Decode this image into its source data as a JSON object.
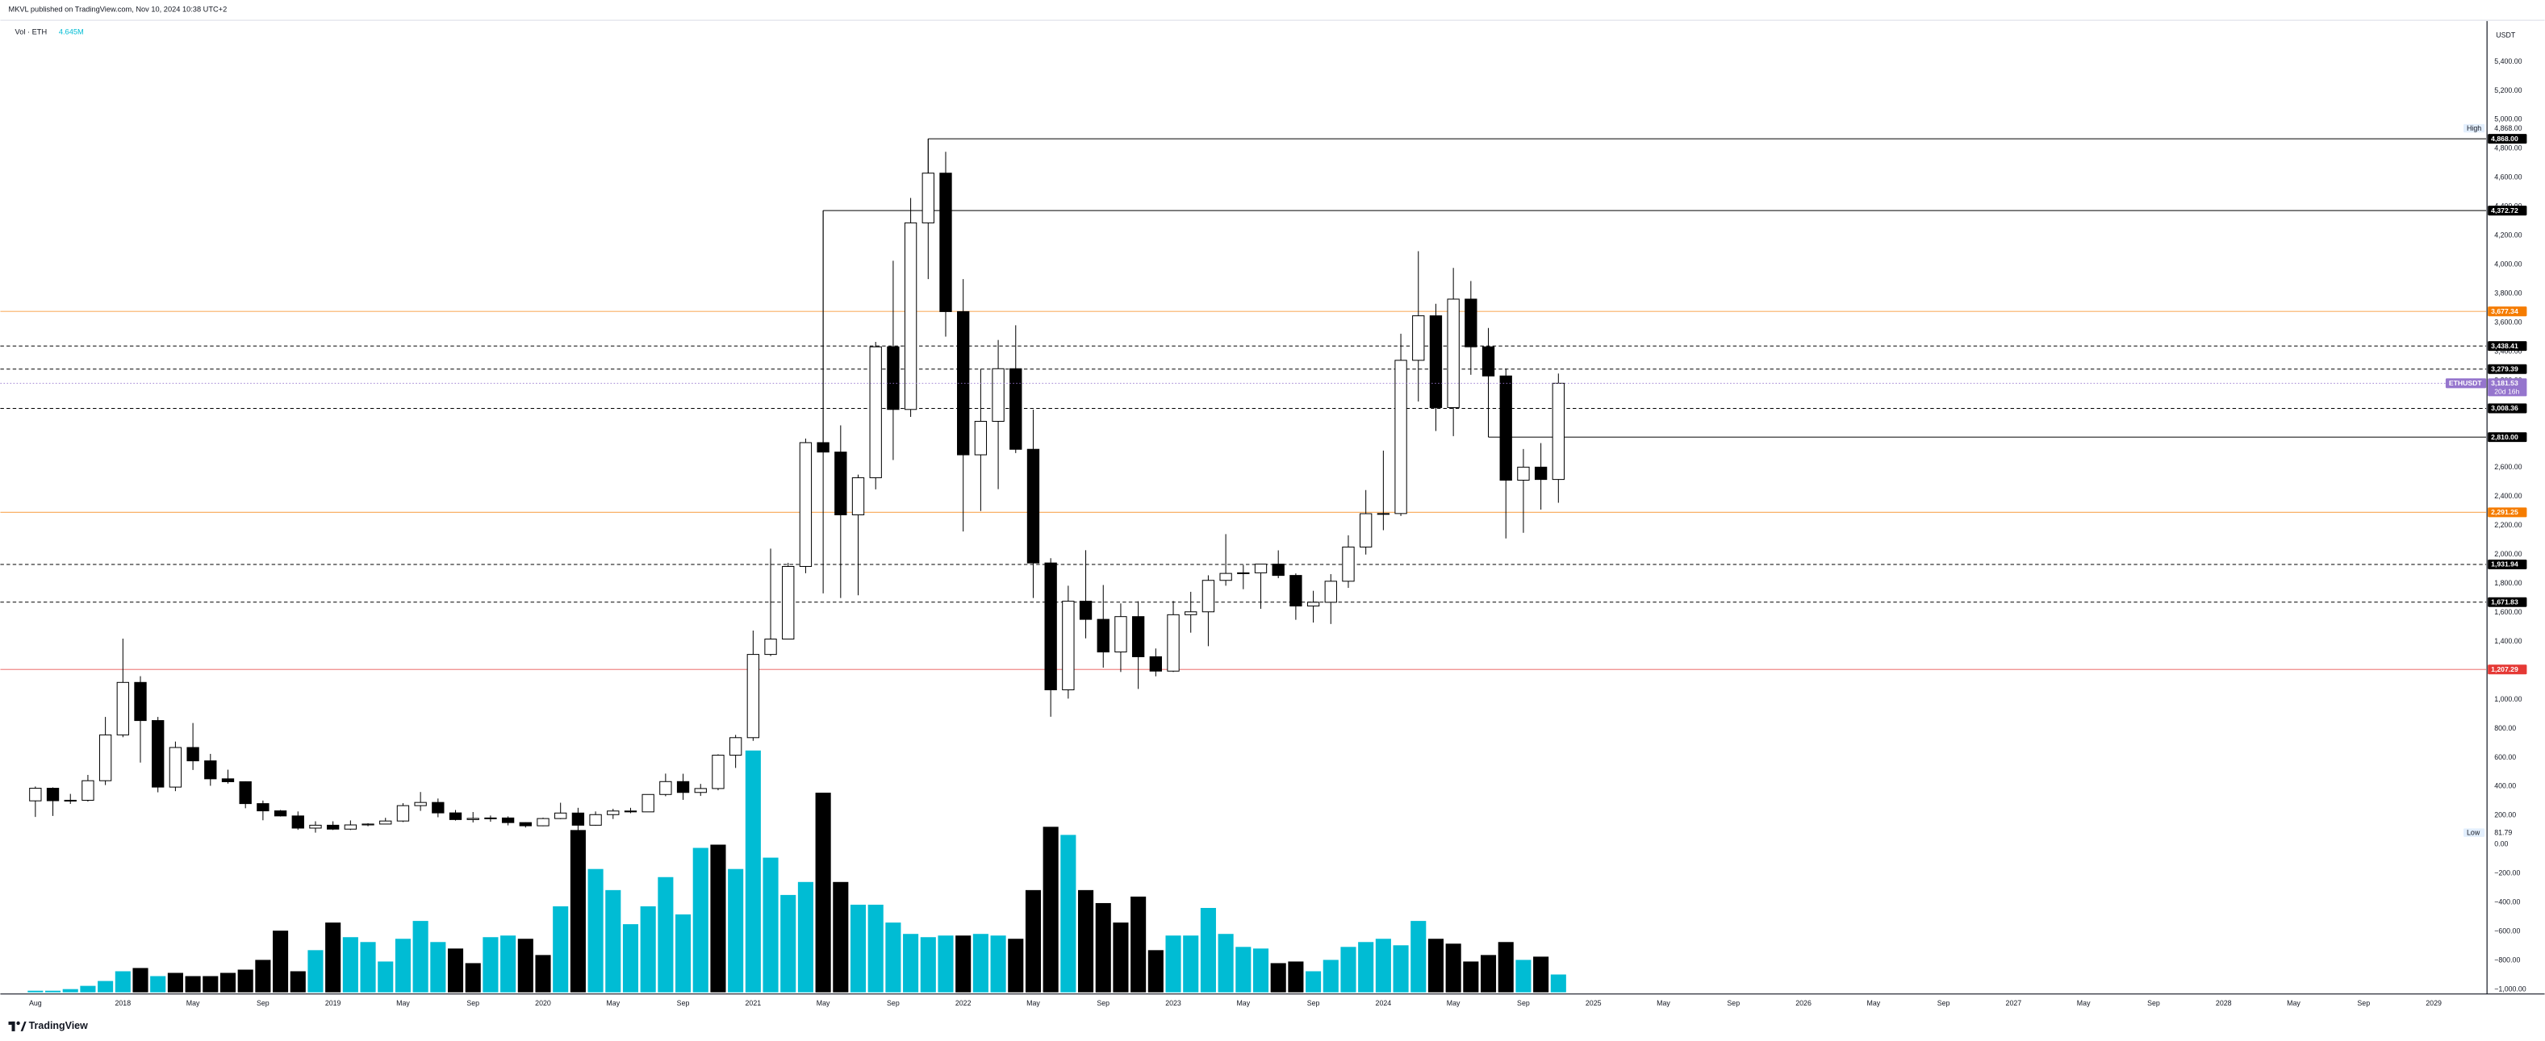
{
  "chart_data": {
    "type": "candlestick",
    "attribution": "MKVL published on TradingView.com, Nov 10, 2024 10:38 UTC+2",
    "footer": "TradingView",
    "y_axis_unit": "USDT",
    "x": [
      "2017-08",
      "2017-09",
      "2017-10",
      "2017-11",
      "2017-12",
      "2018-01",
      "2018-02",
      "2018-03",
      "2018-04",
      "2018-05",
      "2018-06",
      "2018-07",
      "2018-08",
      "2018-09",
      "2018-10",
      "2018-11",
      "2018-12",
      "2019-01",
      "2019-02",
      "2019-03",
      "2019-04",
      "2019-05",
      "2019-06",
      "2019-07",
      "2019-08",
      "2019-09",
      "2019-10",
      "2019-11",
      "2019-12",
      "2020-01",
      "2020-02",
      "2020-03",
      "2020-04",
      "2020-05",
      "2020-06",
      "2020-07",
      "2020-08",
      "2020-09",
      "2020-10",
      "2020-11",
      "2020-12",
      "2021-01",
      "2021-02",
      "2021-03",
      "2021-04",
      "2021-05",
      "2021-06",
      "2021-07",
      "2021-08",
      "2021-09",
      "2021-10",
      "2021-11",
      "2021-12",
      "2022-01",
      "2022-02",
      "2022-03",
      "2022-04",
      "2022-05",
      "2022-06",
      "2022-07",
      "2022-08",
      "2022-09",
      "2022-10",
      "2022-11",
      "2022-12",
      "2023-01",
      "2023-02",
      "2023-03",
      "2023-04",
      "2023-05",
      "2023-06",
      "2023-07",
      "2023-08",
      "2023-09",
      "2023-10",
      "2023-11",
      "2023-12",
      "2024-01",
      "2024-02",
      "2024-03",
      "2024-04",
      "2024-05",
      "2024-06",
      "2024-07",
      "2024-08",
      "2024-09",
      "2024-10",
      "2024-11"
    ],
    "open": [
      301,
      388,
      302,
      305,
      440,
      756,
      1118,
      855,
      396,
      669,
      577,
      453,
      433,
      282,
      232,
      197,
      113,
      133,
      106,
      135,
      141,
      162,
      268,
      290,
      218,
      172,
      180,
      183,
      151,
      129,
      179,
      217,
      133,
      206,
      231,
      225,
      345,
      434,
      359,
      386,
      616,
      737,
      1311,
      1417,
      1918,
      2772,
      2707,
      2274,
      2530,
      3433,
      3001,
      4288,
      4631,
      3676,
      2688,
      2919,
      3282,
      2726,
      1942,
      1067,
      1678,
      1553,
      1328,
      1572,
      1295,
      1196,
      1585,
      1605,
      1822,
      1870,
      1874,
      1934,
      1856,
      1645,
      1671,
      1816,
      2052,
      2282,
      2283,
      3340,
      3647,
      3014,
      3762,
      3433,
      3232,
      2513,
      2603,
      2518
    ],
    "high": [
      400,
      394,
      349,
      480,
      880,
      1420,
      1161,
      880,
      710,
      838,
      625,
      516,
      436,
      303,
      238,
      228,
      160,
      160,
      166,
      147,
      184,
      285,
      362,
      317,
      238,
      224,
      200,
      194,
      153,
      185,
      288,
      253,
      228,
      246,
      253,
      345,
      489,
      488,
      418,
      622,
      756,
      1476,
      2041,
      1943,
      2800,
      4372.72,
      2891,
      2551,
      3467,
      4027,
      4460,
      4868,
      4778,
      3900,
      3280,
      3480,
      3582,
      3000,
      1975,
      1785,
      2030,
      1790,
      1663,
      1678,
      1352,
      1680,
      1743,
      1857,
      2141,
      1928,
      1930,
      2029,
      1870,
      1750,
      1865,
      2133,
      2445,
      2717,
      3523,
      4093,
      3730,
      3977,
      3887,
      3563,
      3283,
      2728,
      2769,
      3249
    ],
    "low": [
      190,
      197,
      280,
      296,
      410,
      740,
      565,
      360,
      368,
      514,
      405,
      420,
      250,
      167,
      193,
      101,
      81.79,
      100,
      100,
      126,
      141,
      155,
      232,
      188,
      165,
      152,
      157,
      132,
      117,
      126,
      175,
      86,
      130,
      176,
      216,
      225,
      333,
      308,
      335,
      374,
      528,
      715,
      1300,
      1416,
      1871,
      1732,
      1700,
      1719,
      2450,
      2652,
      2950,
      3900,
      3503,
      2159,
      2300,
      2451,
      2700,
      1700,
      881,
      1006,
      1422,
      1220,
      1190,
      1073,
      1160,
      1190,
      1461,
      1368,
      1785,
      1761,
      1626,
      1837,
      1550,
      1531,
      1521,
      1770,
      2000,
      2168,
      2266,
      3056,
      2852,
      2817,
      3240,
      2811,
      2111,
      2150,
      2310,
      2357
    ],
    "close": [
      388,
      302,
      305,
      440,
      756,
      1118,
      855,
      396,
      669,
      577,
      453,
      433,
      282,
      232,
      197,
      113,
      133,
      106,
      135,
      141,
      162,
      268,
      290,
      218,
      172,
      180,
      183,
      151,
      129,
      179,
      217,
      133,
      206,
      231,
      225,
      345,
      434,
      359,
      386,
      616,
      737,
      1311,
      1417,
      1918,
      2772,
      2707,
      2274,
      2530,
      3433,
      3001,
      4288,
      4631,
      3676,
      2688,
      2919,
      3282,
      2726,
      1942,
      1067,
      1678,
      1553,
      1328,
      1572,
      1295,
      1196,
      1585,
      1605,
      1822,
      1870,
      1874,
      1934,
      1856,
      1645,
      1671,
      1816,
      2052,
      2282,
      2283,
      3340,
      3647,
      3014,
      3762,
      3433,
      3232,
      2513,
      2603,
      2518,
      3181.53
    ],
    "up_color": "#ffffff",
    "down_color": "#000000",
    "border_color": "#000000",
    "volume": {
      "name": "Vol · ETH",
      "last_value_label": "4.645M",
      "values": [
        422000,
        422000,
        844000,
        1688000,
        2954000,
        5486000,
        6330000,
        4220000,
        5064000,
        4220000,
        4220000,
        5064000,
        5908000,
        8440000,
        16036000,
        5486000,
        10972000,
        18146000,
        14348000,
        13082000,
        8018000,
        13926000,
        18568000,
        13082000,
        11394000,
        7596000,
        14348000,
        14770000,
        13926000,
        9706000,
        22366000,
        42200000,
        32072000,
        26586000,
        17724000,
        22366000,
        29962000,
        20256000,
        37558000,
        38402000,
        32072000,
        62878000,
        35026000,
        25320000,
        28696000,
        51906000,
        28696000,
        22788000,
        22788000,
        18146000,
        15192000,
        14348000,
        14770000,
        14770000,
        15192000,
        14770000,
        13926000,
        26586000,
        43044000,
        40934000,
        26586000,
        23210000,
        18146000,
        24898000,
        10972000,
        14770000,
        14770000,
        21944000,
        15192000,
        11816000,
        11394000,
        7596000,
        8018000,
        5486000,
        8440000,
        11816000,
        13082000,
        13926000,
        12238000,
        18568000,
        13926000,
        12660000,
        8018000,
        9706000,
        13082000,
        8440000,
        9284000,
        4645000
      ],
      "colors": [
        "#00bcd4",
        "#00bcd4",
        "#00bcd4",
        "#00bcd4",
        "#00bcd4",
        "#00bcd4",
        "#000000",
        "#00bcd4",
        "#000000",
        "#000000",
        "#000000",
        "#000000",
        "#000000",
        "#000000",
        "#000000",
        "#000000",
        "#00bcd4",
        "#000000",
        "#00bcd4",
        "#00bcd4",
        "#00bcd4",
        "#00bcd4",
        "#00bcd4",
        "#00bcd4",
        "#000000",
        "#000000",
        "#00bcd4",
        "#00bcd4",
        "#000000",
        "#000000",
        "#00bcd4",
        "#000000",
        "#00bcd4",
        "#00bcd4",
        "#00bcd4",
        "#00bcd4",
        "#00bcd4",
        "#00bcd4",
        "#00bcd4",
        "#000000",
        "#00bcd4",
        "#00bcd4",
        "#00bcd4",
        "#00bcd4",
        "#00bcd4",
        "#000000",
        "#000000",
        "#00bcd4",
        "#00bcd4",
        "#00bcd4",
        "#00bcd4",
        "#00bcd4",
        "#00bcd4",
        "#000000",
        "#00bcd4",
        "#00bcd4",
        "#000000",
        "#000000",
        "#000000",
        "#00bcd4",
        "#000000",
        "#000000",
        "#000000",
        "#000000",
        "#000000",
        "#00bcd4",
        "#00bcd4",
        "#00bcd4",
        "#00bcd4",
        "#00bcd4",
        "#00bcd4",
        "#000000",
        "#000000",
        "#00bcd4",
        "#00bcd4",
        "#00bcd4",
        "#00bcd4",
        "#00bcd4",
        "#00bcd4",
        "#00bcd4",
        "#000000",
        "#000000",
        "#000000",
        "#000000",
        "#000000",
        "#00bcd4",
        "#000000",
        "#00bcd4"
      ]
    },
    "ylim": [
      -1020,
      5680
    ],
    "yticks": [
      {
        "value": -1000,
        "label": "−1,000.00"
      },
      {
        "value": -800,
        "label": "−800.00"
      },
      {
        "value": -600,
        "label": "−600.00"
      },
      {
        "value": -400,
        "label": "−400.00"
      },
      {
        "value": -200,
        "label": "−200.00"
      },
      {
        "value": 0,
        "label": "0.00"
      },
      {
        "value": 200,
        "label": "200.00"
      },
      {
        "value": 400,
        "label": "400.00"
      },
      {
        "value": 600,
        "label": "600.00"
      },
      {
        "value": 800,
        "label": "800.00"
      },
      {
        "value": 1000,
        "label": "1,000.00"
      },
      {
        "value": 1200,
        "label": "1,200.00"
      },
      {
        "value": 1400,
        "label": "1,400.00"
      },
      {
        "value": 1600,
        "label": "1,600.00"
      },
      {
        "value": 1800,
        "label": "1,800.00"
      },
      {
        "value": 2000,
        "label": "2,000.00"
      },
      {
        "value": 2200,
        "label": "2,200.00"
      },
      {
        "value": 2400,
        "label": "2,400.00"
      },
      {
        "value": 2600,
        "label": "2,600.00"
      },
      {
        "value": 2800,
        "label": "2,800.00"
      },
      {
        "value": 3000,
        "label": "3,000.00"
      },
      {
        "value": 3200,
        "label": "3,200.00"
      },
      {
        "value": 3400,
        "label": "3,400.00"
      },
      {
        "value": 3600,
        "label": "3,600.00"
      },
      {
        "value": 3800,
        "label": "3,800.00"
      },
      {
        "value": 4000,
        "label": "4,000.00"
      },
      {
        "value": 4200,
        "label": "4,200.00"
      },
      {
        "value": 4400,
        "label": "4,400.00"
      },
      {
        "value": 4600,
        "label": "4,600.00"
      },
      {
        "value": 4800,
        "label": "4,800.00"
      },
      {
        "value": 5000,
        "label": "5,000.00"
      },
      {
        "value": 5200,
        "label": "5,200.00"
      },
      {
        "value": 5400,
        "label": "5,400.00"
      }
    ],
    "xlim": [
      "2017-06",
      "2029-04"
    ],
    "xticks": [
      {
        "value": "2017-08",
        "label": "Aug"
      },
      {
        "value": "2018-01",
        "label": "2018"
      },
      {
        "value": "2018-05",
        "label": "May"
      },
      {
        "value": "2018-09",
        "label": "Sep"
      },
      {
        "value": "2019-01",
        "label": "2019"
      },
      {
        "value": "2019-05",
        "label": "May"
      },
      {
        "value": "2019-09",
        "label": "Sep"
      },
      {
        "value": "2020-01",
        "label": "2020"
      },
      {
        "value": "2020-05",
        "label": "May"
      },
      {
        "value": "2020-09",
        "label": "Sep"
      },
      {
        "value": "2021-01",
        "label": "2021"
      },
      {
        "value": "2021-05",
        "label": "May"
      },
      {
        "value": "2021-09",
        "label": "Sep"
      },
      {
        "value": "2022-01",
        "label": "2022"
      },
      {
        "value": "2022-05",
        "label": "May"
      },
      {
        "value": "2022-09",
        "label": "Sep"
      },
      {
        "value": "2023-01",
        "label": "2023"
      },
      {
        "value": "2023-05",
        "label": "May"
      },
      {
        "value": "2023-09",
        "label": "Sep"
      },
      {
        "value": "2024-01",
        "label": "2024"
      },
      {
        "value": "2024-05",
        "label": "May"
      },
      {
        "value": "2024-09",
        "label": "Sep"
      },
      {
        "value": "2025-01",
        "label": "2025"
      },
      {
        "value": "2025-05",
        "label": "May"
      },
      {
        "value": "2025-09",
        "label": "Sep"
      },
      {
        "value": "2026-01",
        "label": "2026"
      },
      {
        "value": "2026-05",
        "label": "May"
      },
      {
        "value": "2026-09",
        "label": "Sep"
      },
      {
        "value": "2027-01",
        "label": "2027"
      },
      {
        "value": "2027-05",
        "label": "May"
      },
      {
        "value": "2027-09",
        "label": "Sep"
      },
      {
        "value": "2028-01",
        "label": "2028"
      },
      {
        "value": "2028-05",
        "label": "May"
      },
      {
        "value": "2028-09",
        "label": "Sep"
      },
      {
        "value": "2029-01",
        "label": "2029"
      }
    ],
    "grid": false,
    "levels": [
      {
        "value": 4868,
        "label": "4,868.00",
        "color": "#000000",
        "style": "solid",
        "from": "2021-11"
      },
      {
        "value": 4372.72,
        "label": "4,372.72",
        "color": "#000000",
        "style": "solid",
        "from": "2021-05"
      },
      {
        "value": 3677.34,
        "label": "3,677.34",
        "color": "#f57c00",
        "style": "solid"
      },
      {
        "value": 3438.41,
        "label": "3,438.41",
        "color": "#000000",
        "style": "dashed"
      },
      {
        "value": 3279.39,
        "label": "3,279.39",
        "color": "#000000",
        "style": "dashed"
      },
      {
        "value": 3008.36,
        "label": "3,008.36",
        "color": "#000000",
        "style": "dashed"
      },
      {
        "value": 2810,
        "label": "2,810.00",
        "color": "#000000",
        "style": "solid",
        "from": "2024-07"
      },
      {
        "value": 2291.25,
        "label": "2,291.25",
        "color": "#f57c00",
        "style": "solid"
      },
      {
        "value": 1931.94,
        "label": "1,931.94",
        "color": "#000000",
        "style": "dashed"
      },
      {
        "value": 1671.83,
        "label": "1,671.83",
        "color": "#000000",
        "style": "dashed"
      },
      {
        "value": 1207.29,
        "label": "1,207.29",
        "color": "#e53935",
        "style": "solid"
      }
    ],
    "high_marker": {
      "name": "High",
      "value": 4868,
      "label": "4,868.00"
    },
    "low_marker": {
      "name": "Low",
      "value": 81.79,
      "label": "81.79"
    },
    "last_price": {
      "symbol": "ETHUSDT",
      "value": 3181.53,
      "label": "3,181.53",
      "countdown": "20d 16h",
      "color": "#9575cd"
    }
  }
}
